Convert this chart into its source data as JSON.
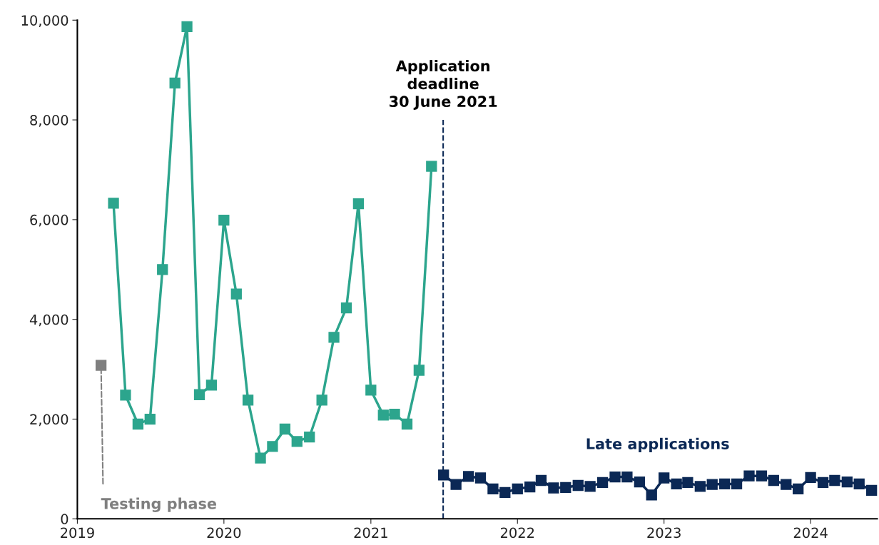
{
  "chart_data": {
    "type": "line",
    "xlim": [
      "2019-01-01",
      "2024-06-15"
    ],
    "xticks": [
      {
        "value": "2019-01-01",
        "label": "2019"
      },
      {
        "value": "2020-01-01",
        "label": "2020"
      },
      {
        "value": "2021-01-01",
        "label": "2021"
      },
      {
        "value": "2022-01-01",
        "label": "2022"
      },
      {
        "value": "2023-01-01",
        "label": "2023"
      },
      {
        "value": "2024-01-01",
        "label": "2024"
      }
    ],
    "ylim": [
      0,
      10000
    ],
    "yticks": [
      {
        "value": 0,
        "label": "0"
      },
      {
        "value": 2000,
        "label": "2,000"
      },
      {
        "value": 4000,
        "label": "4,000"
      },
      {
        "value": 6000,
        "label": "6,000"
      },
      {
        "value": 8000,
        "label": "8,000"
      },
      {
        "value": 10000,
        "label": "10,000"
      }
    ],
    "grid": false,
    "legend": false,
    "marker": "square",
    "line_style": "solid",
    "series": [
      {
        "name": "Testing phase",
        "color": "#7f7f7f",
        "x": [
          "2019-03"
        ],
        "values": [
          3080
        ]
      },
      {
        "color": "#2ca58d",
        "x": [
          "2019-04",
          "2019-05",
          "2019-06",
          "2019-07",
          "2019-08",
          "2019-09",
          "2019-10",
          "2019-11",
          "2019-12",
          "2020-01",
          "2020-02",
          "2020-03",
          "2020-04",
          "2020-05",
          "2020-06",
          "2020-07",
          "2020-08",
          "2020-09",
          "2020-10",
          "2020-11",
          "2020-12",
          "2021-01",
          "2021-02",
          "2021-03",
          "2021-04",
          "2021-05",
          "2021-06"
        ],
        "values": [
          6330,
          2480,
          1900,
          2000,
          5000,
          8740,
          9870,
          2490,
          2680,
          5990,
          4510,
          2380,
          1220,
          1450,
          1800,
          1550,
          1640,
          2380,
          3640,
          4230,
          6320,
          2580,
          2080,
          2100,
          1900,
          2980,
          7070
        ]
      },
      {
        "name": "Late applications",
        "color": "#0b2855",
        "x": [
          "2021-07",
          "2021-08",
          "2021-09",
          "2021-10",
          "2021-11",
          "2021-12",
          "2022-01",
          "2022-02",
          "2022-03",
          "2022-04",
          "2022-05",
          "2022-06",
          "2022-07",
          "2022-08",
          "2022-09",
          "2022-10",
          "2022-11",
          "2022-12",
          "2023-01",
          "2023-02",
          "2023-03",
          "2023-04",
          "2023-05",
          "2023-06",
          "2023-07",
          "2023-08",
          "2023-09",
          "2023-10",
          "2023-11",
          "2023-12",
          "2024-01",
          "2024-02",
          "2024-03",
          "2024-04",
          "2024-05",
          "2024-06"
        ],
        "values": [
          880,
          690,
          850,
          820,
          600,
          530,
          600,
          640,
          770,
          620,
          630,
          670,
          650,
          730,
          840,
          840,
          740,
          480,
          820,
          700,
          730,
          650,
          690,
          700,
          700,
          860,
          860,
          770,
          690,
          600,
          830,
          730,
          770,
          740,
          700,
          570
        ]
      }
    ],
    "ref_lines": [
      {
        "axis": "x",
        "value": "2021-06-30",
        "label": "Application\ndeadline\n30 June 2021",
        "color": "#0b2855",
        "line_style": "dashed"
      }
    ]
  }
}
